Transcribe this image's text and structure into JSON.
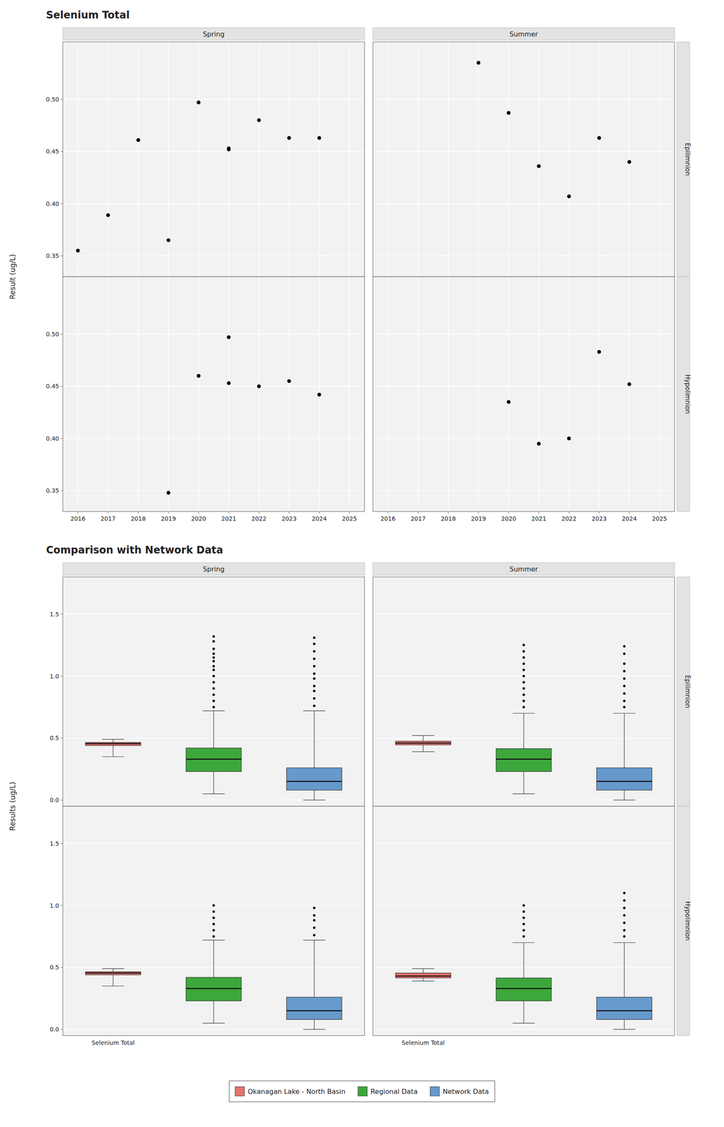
{
  "chart_data": [
    {
      "type": "scatter",
      "title": "Selenium Total",
      "y_label": "Result (ug/L)",
      "columns": [
        "Spring",
        "Summer"
      ],
      "rows": [
        "Epilimnion",
        "Hypolimnion"
      ],
      "color": "black",
      "grid": true,
      "xlim": [
        2015.5,
        2025.5
      ],
      "xticks": [
        2016,
        2017,
        2018,
        2019,
        2020,
        2021,
        2022,
        2023,
        2024,
        2025
      ],
      "ylim": [
        0.33,
        0.555
      ],
      "yticks": [
        0.35,
        {
          "value": 0.4,
          "label": "0.40"
        },
        0.45,
        {
          "value": 0.5,
          "label": "0.50"
        }
      ],
      "facets": [
        {
          "x": [
            2016,
            2017,
            2018,
            2019,
            2020,
            2021,
            2021,
            2022,
            2023,
            2024
          ],
          "values": [
            0.355,
            0.389,
            0.461,
            0.365,
            0.497,
            0.453,
            0.452,
            0.48,
            0.463,
            0.463
          ]
        },
        {
          "x": [
            2019,
            2020,
            2021,
            2022,
            2023,
            2024
          ],
          "values": [
            0.535,
            0.487,
            0.436,
            0.407,
            0.463,
            0.44
          ]
        },
        {
          "x": [
            2019,
            2020,
            2021,
            2021,
            2022,
            2023,
            2024
          ],
          "values": [
            0.348,
            0.46,
            0.497,
            0.453,
            0.45,
            0.455,
            0.442
          ]
        },
        {
          "x": [
            2020,
            2021,
            2022,
            2023,
            2024
          ],
          "values": [
            0.435,
            0.395,
            0.4,
            0.483,
            0.452
          ]
        }
      ]
    },
    {
      "type": "box",
      "title": "Comparison with Network Data",
      "y_label": "Results (ug/L)",
      "columns": [
        "Spring",
        "Summer"
      ],
      "rows": [
        "Epilimnion",
        "Hypolimnion"
      ],
      "categories": [
        "Selenium Total",
        null,
        null
      ],
      "grid": "y",
      "legend": "bottom",
      "ylim": [
        -0.05,
        1.8
      ],
      "yticks": [
        {
          "value": 0.0,
          "label": "0.0"
        },
        0.5,
        {
          "value": 1.0,
          "label": "1.0"
        },
        1.5
      ],
      "series": [
        {
          "name": "Okanagan Lake - North Basin",
          "color": "#E8736C",
          "boxes": [
            {
              "median": 0.455,
              "q1": 0.44,
              "q3": 0.465,
              "whislo": 0.35,
              "whishi": 0.49,
              "fliers": []
            },
            {
              "median": 0.46,
              "q1": 0.445,
              "q3": 0.475,
              "whislo": 0.39,
              "whishi": 0.52,
              "fliers": []
            },
            {
              "median": 0.455,
              "q1": 0.44,
              "q3": 0.465,
              "whislo": 0.35,
              "whishi": 0.49,
              "fliers": []
            },
            {
              "median": 0.43,
              "q1": 0.415,
              "q3": 0.455,
              "whislo": 0.39,
              "whishi": 0.49,
              "fliers": []
            }
          ]
        },
        {
          "name": "Regional Data",
          "color": "#3CA73C",
          "boxes": [
            {
              "median": 0.33,
              "q1": 0.23,
              "q3": 0.42,
              "whislo": 0.05,
              "whishi": 0.72,
              "fliers": [
                0.75,
                0.8,
                0.85,
                0.9,
                0.95,
                1.0,
                1.05,
                1.08,
                1.12,
                1.15,
                1.18,
                1.22,
                1.28,
                1.32
              ]
            },
            {
              "median": 0.33,
              "q1": 0.23,
              "q3": 0.415,
              "whislo": 0.05,
              "whishi": 0.7,
              "fliers": [
                0.75,
                0.8,
                0.85,
                0.9,
                0.95,
                1.0,
                1.05,
                1.1,
                1.15,
                1.2,
                1.25
              ]
            },
            {
              "median": 0.33,
              "q1": 0.23,
              "q3": 0.42,
              "whislo": 0.05,
              "whishi": 0.72,
              "fliers": [
                0.75,
                0.8,
                0.85,
                0.9,
                0.95,
                1.0
              ]
            },
            {
              "median": 0.33,
              "q1": 0.23,
              "q3": 0.415,
              "whislo": 0.05,
              "whishi": 0.7,
              "fliers": [
                0.75,
                0.8,
                0.85,
                0.9,
                0.95,
                1.0
              ]
            }
          ]
        },
        {
          "name": "Network Data",
          "color": "#6699CC",
          "boxes": [
            {
              "median": 0.15,
              "q1": 0.08,
              "q3": 0.26,
              "whislo": 0.0,
              "whishi": 0.72,
              "fliers": [
                0.76,
                0.82,
                0.88,
                0.92,
                0.98,
                1.02,
                1.08,
                1.14,
                1.2,
                1.26,
                1.31
              ]
            },
            {
              "median": 0.15,
              "q1": 0.08,
              "q3": 0.26,
              "whislo": 0.0,
              "whishi": 0.7,
              "fliers": [
                0.75,
                0.8,
                0.86,
                0.92,
                0.98,
                1.04,
                1.1,
                1.18,
                1.24
              ]
            },
            {
              "median": 0.15,
              "q1": 0.08,
              "q3": 0.26,
              "whislo": 0.0,
              "whishi": 0.72,
              "fliers": [
                0.76,
                0.82,
                0.88,
                0.92,
                0.98
              ]
            },
            {
              "median": 0.15,
              "q1": 0.08,
              "q3": 0.26,
              "whislo": 0.0,
              "whishi": 0.7,
              "fliers": [
                0.75,
                0.8,
                0.86,
                0.92,
                0.98,
                1.04,
                1.1
              ]
            }
          ]
        }
      ]
    }
  ]
}
